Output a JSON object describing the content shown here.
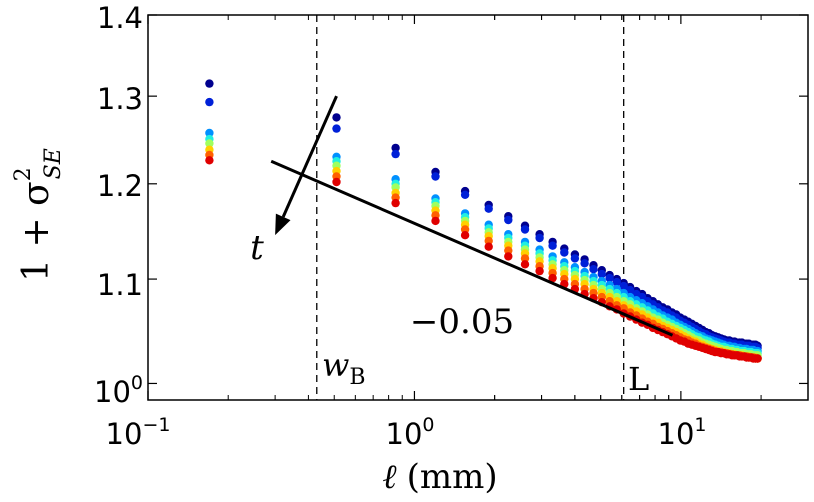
{
  "chart_data": {
    "type": "scatter",
    "xlabel_symbol": "ℓ",
    "xlabel_unit": "(mm)",
    "ylabel_text": "1 + σ",
    "ylabel_sup": "2",
    "ylabel_sub": "SE",
    "x_scale": "log",
    "y_scale": "log",
    "xlim": [
      0.1,
      30
    ],
    "ylim": [
      0.985,
      1.4
    ],
    "x_tick_labels": [
      {
        "base": "10",
        "exp": "−1",
        "value": 0.1
      },
      {
        "base": "10",
        "exp": "0",
        "value": 1
      },
      {
        "base": "10",
        "exp": "1",
        "value": 10
      }
    ],
    "y_tick_labels": [
      {
        "label": "1.4",
        "value": 1.4
      },
      {
        "label": "1.3",
        "value": 1.3
      },
      {
        "label": "1.2",
        "value": 1.2
      },
      {
        "label": "1.1",
        "value": 1.1
      },
      {
        "base": "10",
        "exp": "0",
        "value": 1.0
      }
    ],
    "x": [
      0.17,
      0.51,
      0.85,
      1.2,
      1.55,
      1.9,
      2.25,
      2.6,
      2.95,
      3.3,
      3.65,
      4.0,
      4.35,
      4.7,
      5.05,
      5.4,
      5.75,
      6.1,
      6.45,
      6.8,
      7.15,
      7.5,
      7.85,
      8.2,
      8.55,
      8.9,
      9.25,
      9.6,
      9.95,
      10.3,
      10.65,
      11.0,
      11.35,
      11.7,
      12.05,
      12.4,
      12.75,
      13.1,
      13.45,
      13.8,
      14.15,
      14.5,
      14.85,
      15.2,
      15.55,
      15.9,
      16.25,
      16.6,
      16.95,
      17.3,
      17.65,
      18.0,
      18.35,
      18.7,
      19.05,
      19.4
    ],
    "series": [
      {
        "name": "t1",
        "color": "#00008f",
        "values": [
          1.315,
          1.275,
          1.24,
          1.213,
          1.192,
          1.177,
          1.165,
          1.155,
          1.146,
          1.138,
          1.131,
          1.125,
          1.12,
          1.114,
          1.109,
          1.104,
          1.1,
          1.096,
          1.092,
          1.088,
          1.085,
          1.081,
          1.078,
          1.075,
          1.072,
          1.07,
          1.067,
          1.065,
          1.062,
          1.06,
          1.058,
          1.056,
          1.054,
          1.052,
          1.05,
          1.048,
          1.047,
          1.045,
          1.044,
          1.043,
          1.042,
          1.041,
          1.04,
          1.04,
          1.039,
          1.039,
          1.038,
          1.038,
          1.038,
          1.037,
          1.037,
          1.037,
          1.036,
          1.036,
          1.036,
          1.035
        ]
      },
      {
        "name": "t2",
        "color": "#0020d8",
        "values": [
          1.293,
          1.262,
          1.233,
          1.208,
          1.188,
          1.173,
          1.161,
          1.151,
          1.142,
          1.134,
          1.127,
          1.121,
          1.116,
          1.11,
          1.105,
          1.101,
          1.097,
          1.093,
          1.089,
          1.085,
          1.082,
          1.078,
          1.075,
          1.072,
          1.069,
          1.067,
          1.064,
          1.062,
          1.059,
          1.057,
          1.055,
          1.053,
          1.051,
          1.049,
          1.047,
          1.046,
          1.044,
          1.043,
          1.042,
          1.041,
          1.04,
          1.039,
          1.038,
          1.038,
          1.037,
          1.037,
          1.036,
          1.036,
          1.036,
          1.035,
          1.035,
          1.035,
          1.034,
          1.034,
          1.034,
          1.033
        ]
      },
      {
        "name": "t3",
        "color": "#0090ff",
        "values": [
          1.257,
          1.23,
          1.205,
          1.184,
          1.168,
          1.156,
          1.146,
          1.138,
          1.13,
          1.123,
          1.117,
          1.112,
          1.107,
          1.102,
          1.098,
          1.094,
          1.09,
          1.086,
          1.082,
          1.079,
          1.076,
          1.073,
          1.07,
          1.067,
          1.064,
          1.062,
          1.06,
          1.057,
          1.055,
          1.053,
          1.051,
          1.049,
          1.047,
          1.045,
          1.044,
          1.042,
          1.041,
          1.04,
          1.039,
          1.038,
          1.037,
          1.036,
          1.035,
          1.035,
          1.034,
          1.034,
          1.033,
          1.033,
          1.032,
          1.032,
          1.032,
          1.031,
          1.031,
          1.031,
          1.03,
          1.03
        ]
      },
      {
        "name": "t4",
        "color": "#20f0e0",
        "values": [
          1.25,
          1.225,
          1.2,
          1.18,
          1.164,
          1.152,
          1.142,
          1.134,
          1.126,
          1.119,
          1.113,
          1.108,
          1.103,
          1.098,
          1.094,
          1.09,
          1.086,
          1.082,
          1.078,
          1.075,
          1.072,
          1.069,
          1.066,
          1.063,
          1.061,
          1.058,
          1.056,
          1.054,
          1.052,
          1.05,
          1.048,
          1.046,
          1.044,
          1.043,
          1.041,
          1.04,
          1.039,
          1.037,
          1.036,
          1.035,
          1.034,
          1.034,
          1.033,
          1.032,
          1.032,
          1.031,
          1.031,
          1.03,
          1.03,
          1.03,
          1.029,
          1.029,
          1.029,
          1.028,
          1.028,
          1.028
        ]
      },
      {
        "name": "t5",
        "color": "#a0ff60",
        "values": [
          1.245,
          1.22,
          1.196,
          1.176,
          1.16,
          1.148,
          1.138,
          1.13,
          1.122,
          1.115,
          1.109,
          1.104,
          1.099,
          1.094,
          1.09,
          1.086,
          1.082,
          1.078,
          1.075,
          1.071,
          1.068,
          1.065,
          1.062,
          1.06,
          1.057,
          1.055,
          1.053,
          1.051,
          1.049,
          1.047,
          1.045,
          1.043,
          1.041,
          1.04,
          1.038,
          1.037,
          1.036,
          1.035,
          1.034,
          1.033,
          1.032,
          1.031,
          1.031,
          1.03,
          1.03,
          1.029,
          1.029,
          1.028,
          1.028,
          1.028,
          1.027,
          1.027,
          1.027,
          1.026,
          1.026,
          1.026
        ]
      },
      {
        "name": "t6",
        "color": "#ffd000",
        "values": [
          1.238,
          1.214,
          1.19,
          1.171,
          1.156,
          1.144,
          1.134,
          1.126,
          1.118,
          1.111,
          1.105,
          1.1,
          1.095,
          1.09,
          1.086,
          1.082,
          1.078,
          1.074,
          1.071,
          1.068,
          1.065,
          1.062,
          1.059,
          1.057,
          1.054,
          1.052,
          1.05,
          1.048,
          1.046,
          1.044,
          1.042,
          1.04,
          1.039,
          1.037,
          1.036,
          1.034,
          1.033,
          1.032,
          1.031,
          1.03,
          1.03,
          1.029,
          1.028,
          1.028,
          1.027,
          1.027,
          1.026,
          1.026,
          1.026,
          1.025,
          1.025,
          1.025,
          1.024,
          1.024,
          1.024,
          1.023
        ]
      },
      {
        "name": "t7",
        "color": "#ff6000",
        "values": [
          1.232,
          1.208,
          1.185,
          1.166,
          1.151,
          1.139,
          1.129,
          1.121,
          1.113,
          1.106,
          1.1,
          1.095,
          1.09,
          1.086,
          1.082,
          1.078,
          1.074,
          1.071,
          1.067,
          1.064,
          1.061,
          1.058,
          1.056,
          1.053,
          1.051,
          1.049,
          1.047,
          1.045,
          1.043,
          1.041,
          1.04,
          1.038,
          1.037,
          1.035,
          1.034,
          1.033,
          1.032,
          1.031,
          1.03,
          1.029,
          1.029,
          1.028,
          1.028,
          1.027,
          1.027,
          1.026,
          1.026,
          1.026,
          1.025,
          1.025,
          1.025,
          1.024,
          1.024,
          1.024,
          1.023,
          1.023
        ]
      },
      {
        "name": "t8",
        "color": "#e00000",
        "values": [
          1.226,
          1.202,
          1.179,
          1.16,
          1.145,
          1.133,
          1.123,
          1.115,
          1.108,
          1.101,
          1.095,
          1.09,
          1.085,
          1.081,
          1.077,
          1.073,
          1.07,
          1.066,
          1.063,
          1.06,
          1.057,
          1.055,
          1.052,
          1.05,
          1.048,
          1.046,
          1.044,
          1.042,
          1.04,
          1.039,
          1.037,
          1.036,
          1.035,
          1.034,
          1.033,
          1.032,
          1.031,
          1.03,
          1.029,
          1.029,
          1.028,
          1.028,
          1.027,
          1.027,
          1.026,
          1.026,
          1.026,
          1.025,
          1.025,
          1.025,
          1.024,
          1.024,
          1.024,
          1.023,
          1.023,
          1.023
        ]
      }
    ],
    "vlines": [
      {
        "value": 0.43,
        "label": "w",
        "label_sub": "B",
        "style": "dashed"
      },
      {
        "value": 6.1,
        "label": "L",
        "style": "dashed"
      }
    ],
    "slope_line": {
      "x_start": 0.29,
      "y_start": 1.225,
      "x_end": 9.3,
      "y_end": 1.045,
      "label": "−0.05"
    },
    "time_arrow": {
      "label": "t",
      "x_start": 0.51,
      "y_start": 1.3,
      "x_end": 0.3,
      "y_end": 1.145
    }
  }
}
